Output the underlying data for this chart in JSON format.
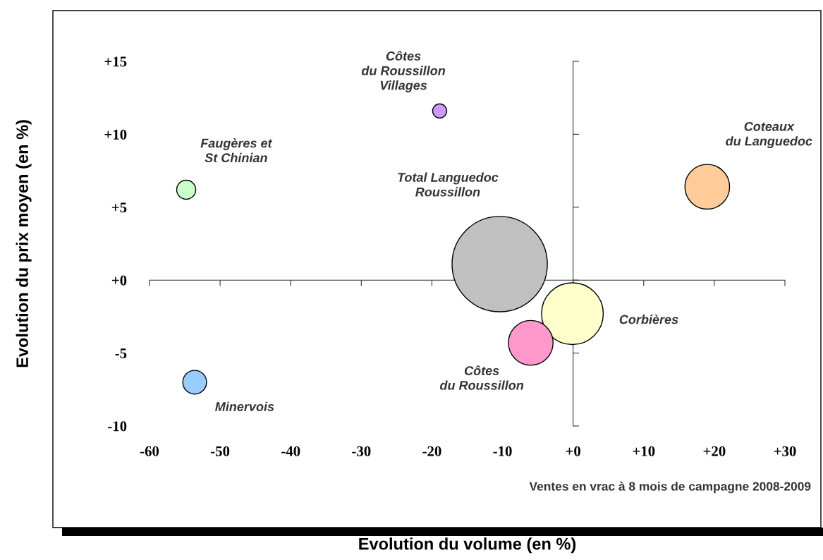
{
  "chart_data": {
    "type": "bubble",
    "xlabel": "Evolution du volume (en %)",
    "ylabel": "Evolution du prix moyen (en %)",
    "annotations": [
      "Ventes en vrac à 8 mois de campagne 2008-2009"
    ],
    "series": [
      {
        "name": "Côtes\ndu Roussillon\nVillages",
        "color": "#cc99ff",
        "x": [
          -18.9
        ],
        "values": [
          11.6
        ],
        "sizes": [
          0.022
        ]
      },
      {
        "name": "Faugères et\nSt Chinian",
        "color": "#ccffcc",
        "x": [
          -54.8
        ],
        "values": [
          6.2
        ],
        "sizes": [
          0.04
        ]
      },
      {
        "name": "Total Languedoc\nRoussillon",
        "color": "#c0c0c0",
        "x": [
          -10.4
        ],
        "values": [
          1.1
        ],
        "sizes": [
          1
        ]
      },
      {
        "name": "Coteaux\ndu Languedoc",
        "color": "#ffcc99",
        "x": [
          19.0
        ],
        "values": [
          6.4
        ],
        "sizes": [
          0.22
        ]
      },
      {
        "name": "Corbières",
        "color": "#ffffcc",
        "x": [
          -0.1
        ],
        "values": [
          -2.3
        ],
        "sizes": [
          0.42
        ]
      },
      {
        "name": "Côtes\ndu Roussillon",
        "color": "#ff99cc",
        "x": [
          -6.0
        ],
        "values": [
          -4.3
        ],
        "sizes": [
          0.22
        ]
      },
      {
        "name": "Minervois",
        "color": "#99ccff",
        "x": [
          -53.6
        ],
        "values": [
          -7.0
        ],
        "sizes": [
          0.062
        ]
      }
    ],
    "xlim": [
      -60,
      30
    ],
    "xticks": [
      -60,
      -50,
      -40,
      -30,
      -20,
      -10,
      {
        "value": 0,
        "label": "+0"
      },
      {
        "value": 10,
        "label": "+10"
      },
      {
        "value": 20,
        "label": "+20"
      },
      {
        "value": 30,
        "label": "+30"
      }
    ],
    "ylim": [
      -10,
      15
    ],
    "yticks": [
      {
        "value": -10,
        "label": "-10"
      },
      {
        "value": -5,
        "label": "-5"
      },
      {
        "value": 0,
        "label": "+0"
      },
      {
        "value": 5,
        "label": "+5"
      },
      {
        "value": 10,
        "label": "+10"
      },
      {
        "value": 15,
        "label": "+15"
      }
    ],
    "legend": false
  }
}
